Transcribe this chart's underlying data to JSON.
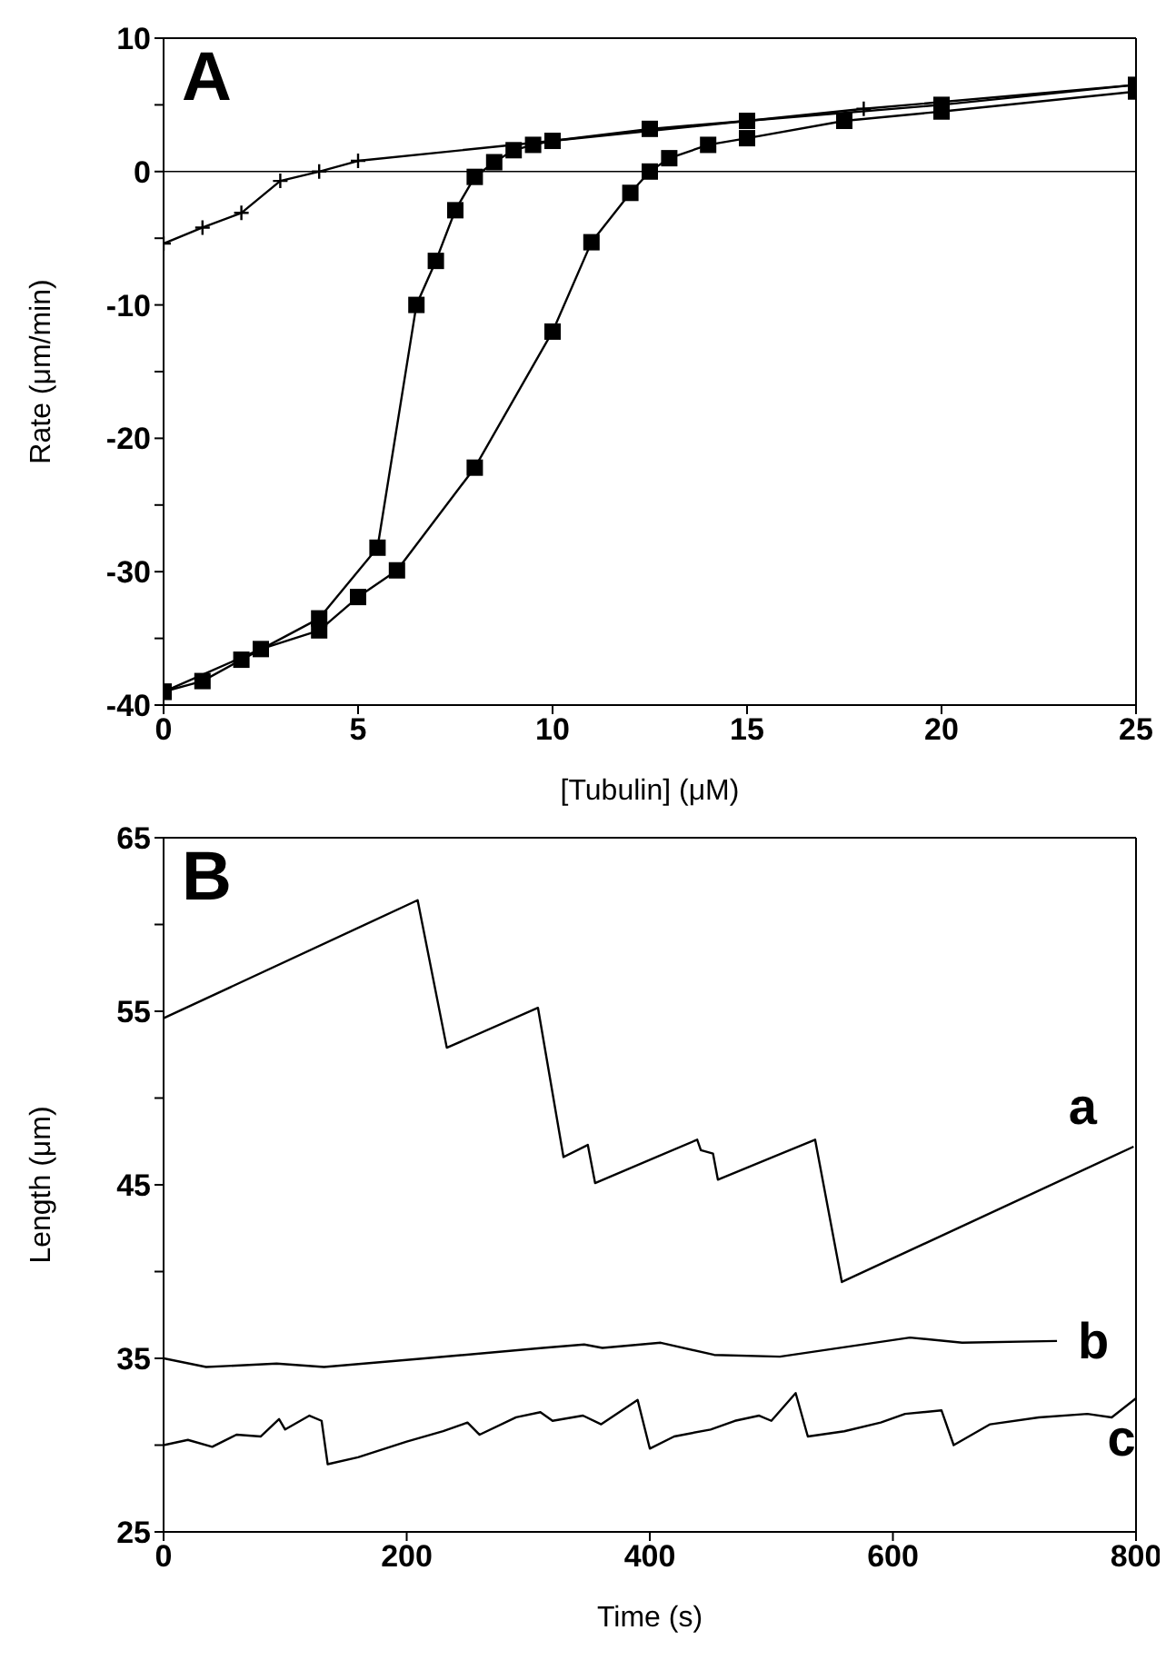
{
  "chart_data": [
    {
      "type": "line",
      "xlabel": "[Tubulin] (μM)",
      "ylabel": "Rate (μm/min)",
      "annotations": [
        "A"
      ],
      "xlim": [
        0,
        25
      ],
      "xticks": [
        0,
        5,
        10,
        15,
        20,
        25
      ],
      "ylim": [
        -40,
        10
      ],
      "yticks": [
        -40,
        {
          "value": -35,
          "label": null
        },
        -30,
        {
          "value": -25,
          "label": null
        },
        -20,
        {
          "value": -15,
          "label": null
        },
        -10,
        {
          "value": -5,
          "label": null
        },
        0,
        {
          "value": 5,
          "label": null
        },
        10
      ],
      "ref_lines": [
        {
          "axis": "y",
          "value": 0,
          "color": "#000000"
        }
      ],
      "series": [
        {
          "color": "#000000",
          "marker": "square",
          "x": [
            0,
            1,
            2,
            4,
            5.5,
            6.5,
            7,
            7.5,
            8,
            8.5,
            9,
            9.5,
            10,
            12.5,
            15,
            20,
            25
          ],
          "values": [
            -39,
            -38.2,
            -36.6,
            -33.5,
            -28.2,
            -10,
            -6.7,
            -2.9,
            -0.4,
            0.7,
            1.6,
            2,
            2.3,
            3.2,
            3.8,
            5,
            6.5
          ]
        },
        {
          "color": "#000000",
          "marker": "square",
          "x": [
            0,
            2.5,
            4,
            5,
            6,
            8,
            10,
            11,
            12,
            12.5,
            13,
            14,
            15,
            17.5,
            20,
            25
          ],
          "values": [
            -39,
            -35.8,
            -34.4,
            -31.9,
            -29.9,
            -22.2,
            -12,
            -5.3,
            -1.6,
            0,
            1,
            2,
            2.5,
            3.8,
            4.5,
            6
          ]
        },
        {
          "color": "#000000",
          "marker": "cross",
          "x": [
            0,
            1,
            2,
            3,
            4,
            5,
            18,
            25
          ],
          "values": [
            -5.4,
            -4.2,
            -3.1,
            -0.7,
            0,
            0.8,
            4.7,
            6.5
          ]
        }
      ]
    },
    {
      "type": "line",
      "xlabel": "Time (s)",
      "ylabel": "Length (μm)",
      "annotations": [
        "B"
      ],
      "xlim": [
        0,
        800
      ],
      "xticks": [
        0,
        200,
        400,
        600,
        800
      ],
      "ylim": [
        25,
        65
      ],
      "yticks": [
        25,
        {
          "value": 30,
          "label": null
        },
        35,
        {
          "value": 40,
          "label": null
        },
        45,
        {
          "value": 50,
          "label": null
        },
        55,
        {
          "value": 60,
          "label": null
        },
        65
      ],
      "marker": "none",
      "series": [
        {
          "name": "a",
          "color": "#000000",
          "x": [
            0,
            209,
            233,
            308,
            329,
            349,
            355,
            439,
            442,
            452,
            456,
            536,
            558,
            798
          ],
          "values": [
            54.6,
            61.4,
            52.9,
            55.2,
            46.6,
            47.3,
            45.1,
            47.6,
            47.0,
            46.8,
            45.3,
            47.6,
            39.4,
            47.2
          ]
        },
        {
          "name": "b",
          "color": "#000000",
          "x": [
            0,
            35,
            93,
            132,
            215,
            312,
            346,
            361,
            409,
            453,
            507,
            614,
            657,
            735
          ],
          "values": [
            35.0,
            34.5,
            34.7,
            34.5,
            35.0,
            35.6,
            35.8,
            35.6,
            35.9,
            35.2,
            35.1,
            36.2,
            35.9,
            36.0
          ]
        },
        {
          "name": "c",
          "color": "#000000",
          "x": [
            0,
            20,
            40,
            60,
            80,
            95,
            100,
            120,
            130,
            135,
            160,
            200,
            230,
            250,
            260,
            290,
            310,
            320,
            345,
            360,
            390,
            400,
            420,
            450,
            470,
            490,
            500,
            520,
            530,
            560,
            590,
            610,
            640,
            650,
            680,
            720,
            760,
            780,
            800
          ],
          "values": [
            30.0,
            30.3,
            29.9,
            30.6,
            30.5,
            31.5,
            30.9,
            31.7,
            31.4,
            28.9,
            29.3,
            30.2,
            30.8,
            31.3,
            30.6,
            31.6,
            31.9,
            31.4,
            31.7,
            31.2,
            32.6,
            29.8,
            30.5,
            30.9,
            31.4,
            31.7,
            31.4,
            33.0,
            30.5,
            30.8,
            31.3,
            31.8,
            32.0,
            30.0,
            31.2,
            31.6,
            31.8,
            31.6,
            32.7
          ]
        }
      ]
    }
  ]
}
